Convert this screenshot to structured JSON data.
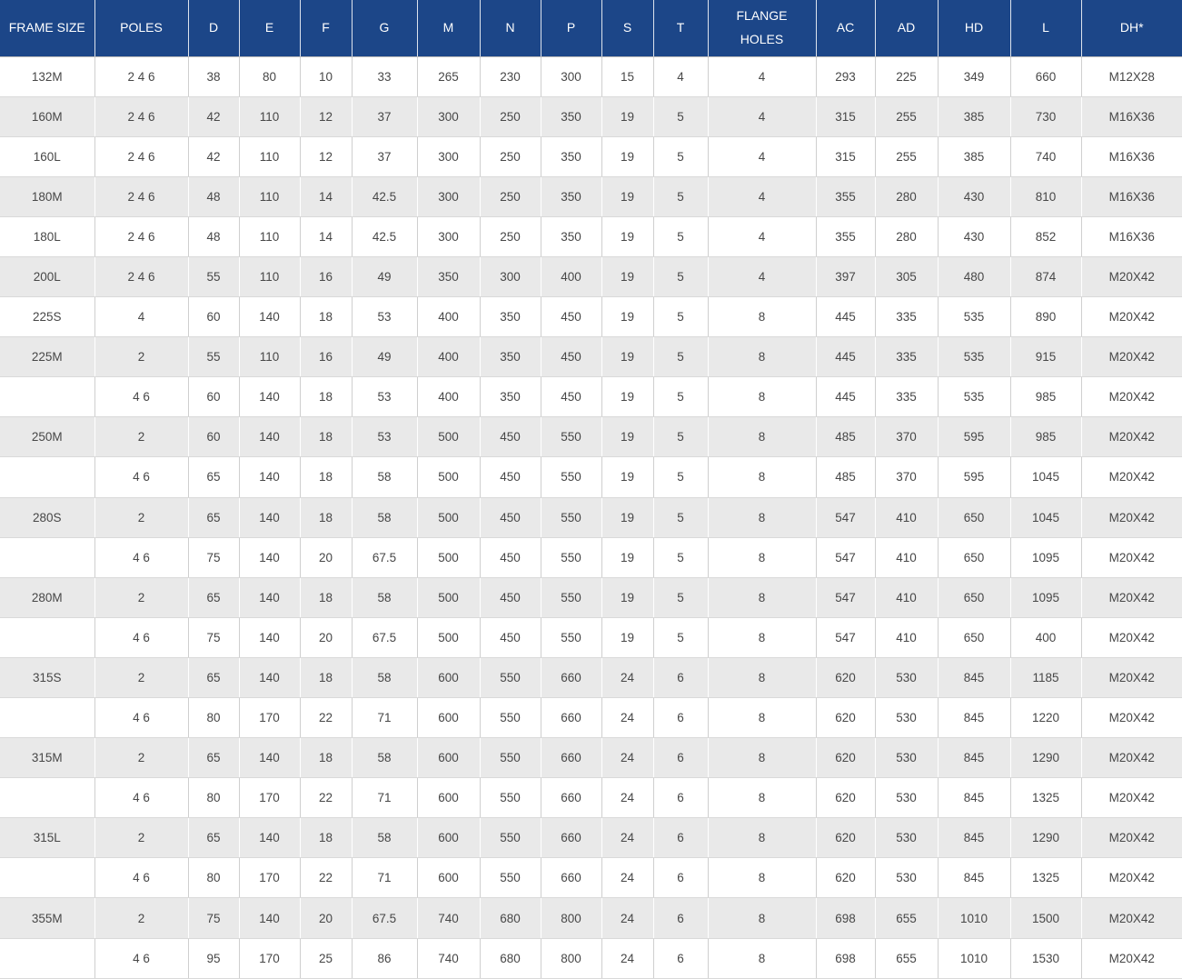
{
  "colors": {
    "header_bg": "#1c4688",
    "header_text": "#ffffff",
    "row_odd_bg": "#ffffff",
    "row_even_bg": "#e9e9e9",
    "cell_text": "#474747"
  },
  "chart_data": {
    "type": "table",
    "columns": [
      "FRAME SIZE",
      "POLES",
      "D",
      "E",
      "F",
      "G",
      "M",
      "N",
      "P",
      "S",
      "T",
      "FLANGE HOLES",
      "AC",
      "AD",
      "HD",
      "L",
      "DH*"
    ],
    "rows": [
      [
        "132M",
        "2 4 6",
        "38",
        "80",
        "10",
        "33",
        "265",
        "230",
        "300",
        "15",
        "4",
        "4",
        "293",
        "225",
        "349",
        "660",
        "M12X28"
      ],
      [
        "160M",
        "2 4 6",
        "42",
        "110",
        "12",
        "37",
        "300",
        "250",
        "350",
        "19",
        "5",
        "4",
        "315",
        "255",
        "385",
        "730",
        "M16X36"
      ],
      [
        "160L",
        "2 4 6",
        "42",
        "110",
        "12",
        "37",
        "300",
        "250",
        "350",
        "19",
        "5",
        "4",
        "315",
        "255",
        "385",
        "740",
        "M16X36"
      ],
      [
        "180M",
        "2 4 6",
        "48",
        "110",
        "14",
        "42.5",
        "300",
        "250",
        "350",
        "19",
        "5",
        "4",
        "355",
        "280",
        "430",
        "810",
        "M16X36"
      ],
      [
        "180L",
        "2 4 6",
        "48",
        "110",
        "14",
        "42.5",
        "300",
        "250",
        "350",
        "19",
        "5",
        "4",
        "355",
        "280",
        "430",
        "852",
        "M16X36"
      ],
      [
        "200L",
        "2 4 6",
        "55",
        "110",
        "16",
        "49",
        "350",
        "300",
        "400",
        "19",
        "5",
        "4",
        "397",
        "305",
        "480",
        "874",
        "M20X42"
      ],
      [
        "225S",
        "4",
        "60",
        "140",
        "18",
        "53",
        "400",
        "350",
        "450",
        "19",
        "5",
        "8",
        "445",
        "335",
        "535",
        "890",
        "M20X42"
      ],
      [
        "225M",
        "2",
        "55",
        "110",
        "16",
        "49",
        "400",
        "350",
        "450",
        "19",
        "5",
        "8",
        "445",
        "335",
        "535",
        "915",
        "M20X42"
      ],
      [
        "",
        "4 6",
        "60",
        "140",
        "18",
        "53",
        "400",
        "350",
        "450",
        "19",
        "5",
        "8",
        "445",
        "335",
        "535",
        "985",
        "M20X42"
      ],
      [
        "250M",
        "2",
        "60",
        "140",
        "18",
        "53",
        "500",
        "450",
        "550",
        "19",
        "5",
        "8",
        "485",
        "370",
        "595",
        "985",
        "M20X42"
      ],
      [
        "",
        "4 6",
        "65",
        "140",
        "18",
        "58",
        "500",
        "450",
        "550",
        "19",
        "5",
        "8",
        "485",
        "370",
        "595",
        "1045",
        "M20X42"
      ],
      [
        "280S",
        "2",
        "65",
        "140",
        "18",
        "58",
        "500",
        "450",
        "550",
        "19",
        "5",
        "8",
        "547",
        "410",
        "650",
        "1045",
        "M20X42"
      ],
      [
        "",
        "4 6",
        "75",
        "140",
        "20",
        "67.5",
        "500",
        "450",
        "550",
        "19",
        "5",
        "8",
        "547",
        "410",
        "650",
        "1095",
        "M20X42"
      ],
      [
        "280M",
        "2",
        "65",
        "140",
        "18",
        "58",
        "500",
        "450",
        "550",
        "19",
        "5",
        "8",
        "547",
        "410",
        "650",
        "1095",
        "M20X42"
      ],
      [
        "",
        "4 6",
        "75",
        "140",
        "20",
        "67.5",
        "500",
        "450",
        "550",
        "19",
        "5",
        "8",
        "547",
        "410",
        "650",
        "400",
        "M20X42"
      ],
      [
        "315S",
        "2",
        "65",
        "140",
        "18",
        "58",
        "600",
        "550",
        "660",
        "24",
        "6",
        "8",
        "620",
        "530",
        "845",
        "1185",
        "M20X42"
      ],
      [
        "",
        "4 6",
        "80",
        "170",
        "22",
        "71",
        "600",
        "550",
        "660",
        "24",
        "6",
        "8",
        "620",
        "530",
        "845",
        "1220",
        "M20X42"
      ],
      [
        "315M",
        "2",
        "65",
        "140",
        "18",
        "58",
        "600",
        "550",
        "660",
        "24",
        "6",
        "8",
        "620",
        "530",
        "845",
        "1290",
        "M20X42"
      ],
      [
        "",
        "4 6",
        "80",
        "170",
        "22",
        "71",
        "600",
        "550",
        "660",
        "24",
        "6",
        "8",
        "620",
        "530",
        "845",
        "1325",
        "M20X42"
      ],
      [
        "315L",
        "2",
        "65",
        "140",
        "18",
        "58",
        "600",
        "550",
        "660",
        "24",
        "6",
        "8",
        "620",
        "530",
        "845",
        "1290",
        "M20X42"
      ],
      [
        "",
        "4 6",
        "80",
        "170",
        "22",
        "71",
        "600",
        "550",
        "660",
        "24",
        "6",
        "8",
        "620",
        "530",
        "845",
        "1325",
        "M20X42"
      ],
      [
        "355M",
        "2",
        "75",
        "140",
        "20",
        "67.5",
        "740",
        "680",
        "800",
        "24",
        "6",
        "8",
        "698",
        "655",
        "1010",
        "1500",
        "M20X42"
      ],
      [
        "",
        "4 6",
        "95",
        "170",
        "25",
        "86",
        "740",
        "680",
        "800",
        "24",
        "6",
        "8",
        "698",
        "655",
        "1010",
        "1530",
        "M20X42"
      ]
    ]
  }
}
